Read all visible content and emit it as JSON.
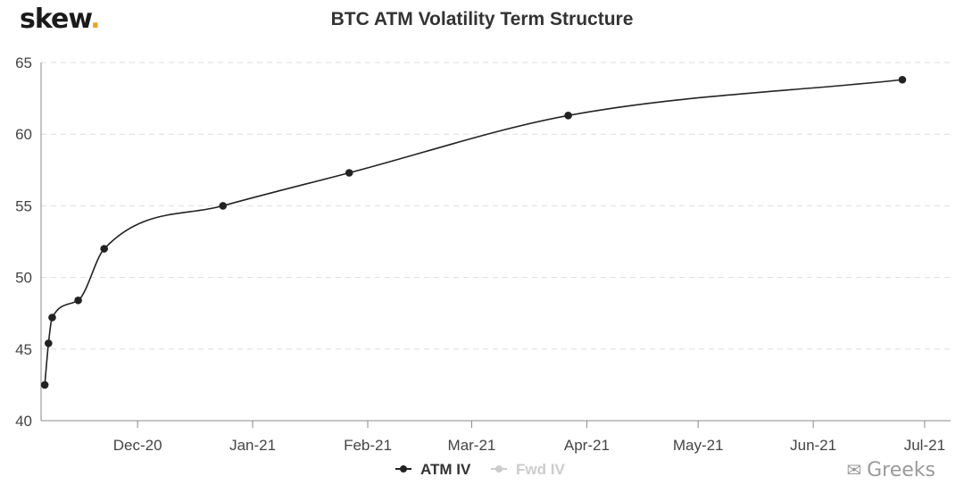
{
  "brand": {
    "name": "skew",
    "dot": "."
  },
  "watermark": {
    "text": "Greeks"
  },
  "chart_data": {
    "type": "line",
    "title": "BTC ATM Volatility Term Structure",
    "xlabel": "",
    "ylabel": "",
    "ylim": [
      40,
      65
    ],
    "yticks": [
      40,
      45,
      50,
      55,
      60,
      65
    ],
    "xlim": [
      "2020-11-05",
      "2021-07-08"
    ],
    "xticks": [
      {
        "date": "2020-12-01",
        "label": "Dec-20"
      },
      {
        "date": "2021-01-01",
        "label": "Jan-21"
      },
      {
        "date": "2021-02-01",
        "label": "Feb-21"
      },
      {
        "date": "2021-03-01",
        "label": "Mar-21"
      },
      {
        "date": "2021-04-01",
        "label": "Apr-21"
      },
      {
        "date": "2021-05-01",
        "label": "May-21"
      },
      {
        "date": "2021-06-01",
        "label": "Jun-21"
      },
      {
        "date": "2021-07-01",
        "label": "Jul-21"
      }
    ],
    "grid": "horizontal dashed",
    "legend_position": "bottom-center",
    "series": [
      {
        "name": "ATM IV",
        "color": "#222222",
        "visible": true,
        "points": [
          {
            "x": "2020-11-06",
            "y": 42.5
          },
          {
            "x": "2020-11-07",
            "y": 45.4
          },
          {
            "x": "2020-11-08",
            "y": 47.2
          },
          {
            "x": "2020-11-15",
            "y": 48.4
          },
          {
            "x": "2020-11-22",
            "y": 52.0
          },
          {
            "x": "2020-12-24",
            "y": 55.0
          },
          {
            "x": "2021-01-27",
            "y": 57.3
          },
          {
            "x": "2021-03-27",
            "y": 61.3
          },
          {
            "x": "2021-06-25",
            "y": 63.8
          }
        ]
      },
      {
        "name": "Fwd IV",
        "color": "#cccccc",
        "visible": false,
        "points": []
      }
    ]
  }
}
